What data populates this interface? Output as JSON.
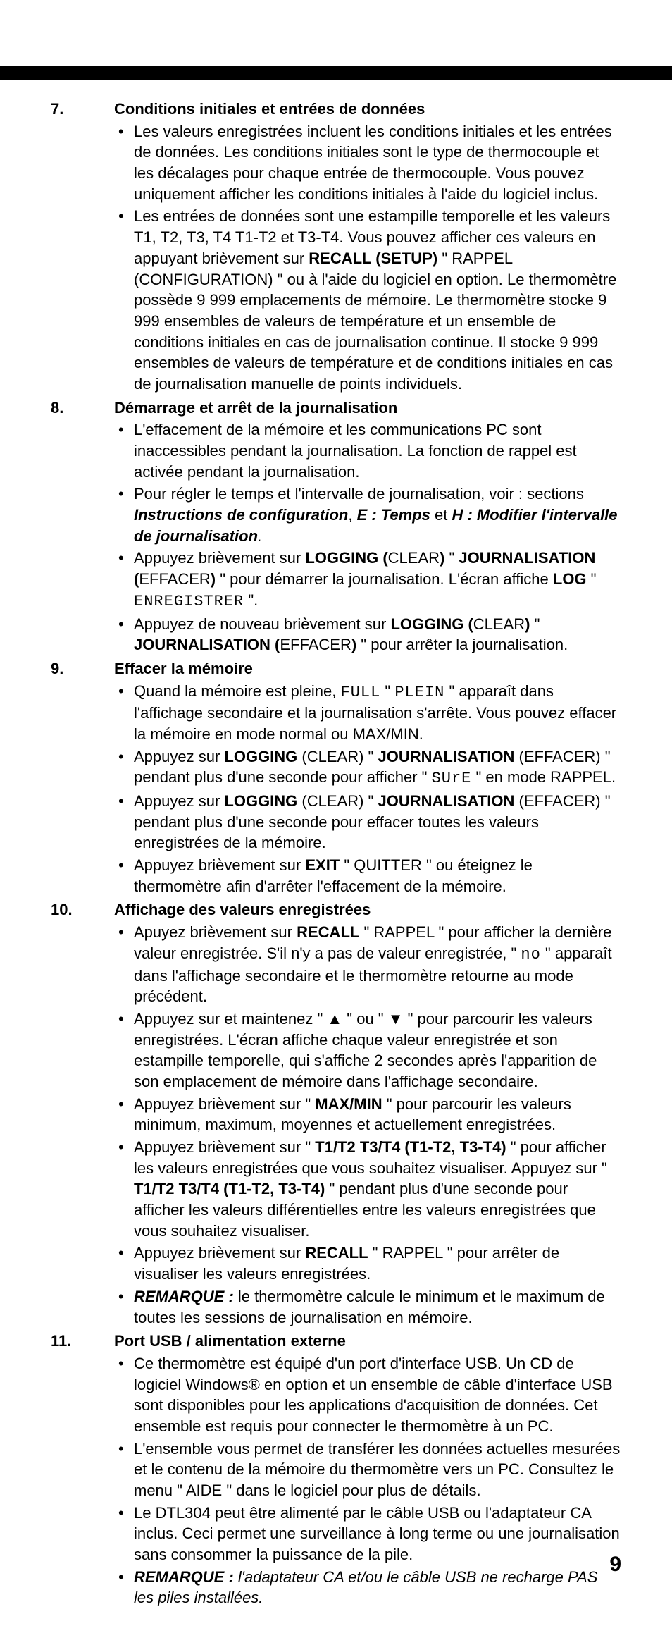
{
  "page_number": "9",
  "sections": [
    {
      "num": "7.",
      "heading": "Conditions initiales et entrées de données",
      "items": [
        {
          "spans": [
            {
              "t": "Les valeurs enregistrées incluent les conditions initiales et les entrées de données. Les conditions initiales sont le type de thermocouple et les décalages pour chaque entrée de thermocouple. Vous pouvez uniquement afficher les conditions initiales à l'aide du logiciel inclus."
            }
          ]
        },
        {
          "spans": [
            {
              "t": "Les entrées de données sont une estampille temporelle et les valeurs T1, T2, T3, T4 T1-T2 et T3-T4. Vous pouvez afficher ces valeurs en appuyant brièvement sur "
            },
            {
              "t": "RECALL (SETUP)",
              "b": true
            },
            {
              "t": " \" RAPPEL (CONFIGURATION) \" ou à l'aide du logiciel en option. Le thermomètre possède 9 999 emplacements de mémoire. Le thermomètre stocke 9 999 ensembles de valeurs de température et un ensemble de conditions initiales en cas de journalisation continue. Il stocke 9 999 ensembles de valeurs de température et de conditions initiales en cas de journalisation manuelle de points individuels."
            }
          ]
        }
      ]
    },
    {
      "num": "8.",
      "heading": "Démarrage et arrêt de la journalisation",
      "items": [
        {
          "spans": [
            {
              "t": "L'effacement de la mémoire et les communications PC sont inaccessibles pendant la journalisation. La fonction de rappel est activée pendant la journalisation."
            }
          ]
        },
        {
          "spans": [
            {
              "t": "Pour régler le temps et l'intervalle de journalisation, voir : sections "
            },
            {
              "t": "Instructions de configuration",
              "b": true,
              "i": true
            },
            {
              "t": ", "
            },
            {
              "t": "E : Temps",
              "b": true,
              "i": true
            },
            {
              "t": " et "
            },
            {
              "t": "H : Modifier l'intervalle de journalisation",
              "b": true,
              "i": true
            },
            {
              "t": ".",
              "i": true
            }
          ]
        },
        {
          "spans": [
            {
              "t": "Appuyez brièvement sur "
            },
            {
              "t": "LOGGING (",
              "b": true
            },
            {
              "t": "CLEAR"
            },
            {
              "t": ")",
              "b": true
            },
            {
              "t": " \" "
            },
            {
              "t": "JOURNALISATION (",
              "b": true
            },
            {
              "t": "EFFACER"
            },
            {
              "t": ")",
              "b": true
            },
            {
              "t": " \" pour démarrer la journalisation. L'écran affiche "
            },
            {
              "t": "LOG",
              "b": true
            },
            {
              "t": " \" "
            },
            {
              "t": "ENREGISTRER",
              "lcd": true
            },
            {
              "t": " \"."
            }
          ]
        },
        {
          "spans": [
            {
              "t": "Appuyez de nouveau brièvement sur "
            },
            {
              "t": "LOGGING (",
              "b": true
            },
            {
              "t": "CLEAR"
            },
            {
              "t": ")",
              "b": true
            },
            {
              "t": " \" "
            },
            {
              "t": "JOURNALISATION (",
              "b": true
            },
            {
              "t": "EFFACER"
            },
            {
              "t": ")",
              "b": true
            },
            {
              "t": " \" pour arrêter la journalisation."
            }
          ]
        }
      ]
    },
    {
      "num": "9.",
      "heading": "Effacer la mémoire",
      "items": [
        {
          "spans": [
            {
              "t": "Quand la mémoire est pleine, "
            },
            {
              "t": "FULL",
              "lcd": true
            },
            {
              "t": " \" "
            },
            {
              "t": "PLEIN",
              "lcd": true
            },
            {
              "t": " \" apparaît dans l'affichage secondaire et la journalisation s'arrête. Vous pouvez effacer la mémoire en mode normal ou MAX/MIN."
            }
          ]
        },
        {
          "spans": [
            {
              "t": "Appuyez sur "
            },
            {
              "t": "LOGGING",
              "b": true
            },
            {
              "t": " (CLEAR) \" "
            },
            {
              "t": "JOURNALISATION",
              "b": true
            },
            {
              "t": " (EFFACER) \" pendant plus d'une seconde pour afficher \" "
            },
            {
              "t": "SUrE",
              "lcd": true
            },
            {
              "t": " \" en mode RAPPEL."
            }
          ]
        },
        {
          "spans": [
            {
              "t": "Appuyez sur "
            },
            {
              "t": "LOGGING",
              "b": true
            },
            {
              "t": " (CLEAR) \" "
            },
            {
              "t": "JOURNALISATION",
              "b": true
            },
            {
              "t": " (EFFACER) \" pendant plus d'une seconde pour effacer toutes les valeurs enregistrées de la mémoire."
            }
          ]
        },
        {
          "spans": [
            {
              "t": "Appuyez brièvement sur "
            },
            {
              "t": "EXIT",
              "b": true
            },
            {
              "t": " \" QUITTER \" ou éteignez le thermomètre afin d'arrêter l'effacement de la mémoire."
            }
          ]
        }
      ]
    },
    {
      "num": "10.",
      "heading": "Affichage des valeurs enregistrées",
      "items": [
        {
          "spans": [
            {
              "t": "Apuyez brièvement sur "
            },
            {
              "t": "RECALL",
              "b": true
            },
            {
              "t": " \" RAPPEL \" pour afficher la dernière valeur enregistrée. S'il n'y a pas de valeur enregistrée, \" "
            },
            {
              "t": "no",
              "lcd": true
            },
            {
              "t": " \" apparaît dans l'affichage secondaire et le thermomètre retourne au mode précédent."
            }
          ]
        },
        {
          "spans": [
            {
              "t": "Appuyez sur et maintenez \" "
            },
            {
              "t": "▲",
              "b": true
            },
            {
              "t": " \" ou \" "
            },
            {
              "t": "▼",
              "b": true
            },
            {
              "t": " \" pour parcourir les valeurs enregistrées. L'écran affiche chaque valeur enregistrée et son estampille temporelle, qui s'affiche 2 secondes après l'apparition de son emplacement de mémoire dans l'affichage secondaire."
            }
          ]
        },
        {
          "spans": [
            {
              "t": "Appuyez brièvement sur \" "
            },
            {
              "t": "MAX/MIN",
              "b": true
            },
            {
              "t": " \" pour parcourir les valeurs minimum, maximum, moyennes et actuellement enregistrées."
            }
          ]
        },
        {
          "spans": [
            {
              "t": "Appuyez brièvement sur \" "
            },
            {
              "t": "T1/T2 T3/T4 (T1-T2, T3-T4)",
              "b": true
            },
            {
              "t": " \" pour afficher les valeurs enregistrées que vous souhaitez visualiser. Appuyez sur \" "
            },
            {
              "t": "T1/T2 T3/T4 (T1-T2, T3-T4)",
              "b": true
            },
            {
              "t": " \" pendant plus d'une seconde pour afficher les valeurs différentielles entre les valeurs enregistrées que vous souhaitez visualiser."
            }
          ]
        },
        {
          "spans": [
            {
              "t": "Appuyez brièvement sur "
            },
            {
              "t": "RECALL",
              "b": true
            },
            {
              "t": " \" RAPPEL \" pour arrêter de visualiser les valeurs enregistrées."
            }
          ]
        },
        {
          "spans": [
            {
              "t": "REMARQUE : ",
              "b": true,
              "i": true
            },
            {
              "t": "le thermomètre calcule le minimum et le maximum de toutes les sessions de journalisation en mémoire."
            }
          ]
        }
      ]
    },
    {
      "num": "11.",
      "heading": "Port USB / alimentation externe",
      "items": [
        {
          "spans": [
            {
              "t": "Ce thermomètre est équipé d'un port d'interface USB. Un CD de logiciel Windows® en option et un ensemble de câble d'interface USB sont disponibles pour les applications d'acquisition de données. Cet ensemble est requis pour connecter le thermomètre à un PC."
            }
          ]
        },
        {
          "spans": [
            {
              "t": "L'ensemble vous permet de transférer les données actuelles mesurées et le contenu de la mémoire du thermomètre vers un PC. Consultez le menu \" AIDE \" dans le logiciel pour plus de détails."
            }
          ]
        },
        {
          "spans": [
            {
              "t": "Le DTL304 peut être alimenté par le câble USB ou l'adaptateur CA inclus. Ceci permet une surveillance à long terme ou une journalisation sans consommer la puissance de la pile."
            }
          ]
        },
        {
          "spans": [
            {
              "t": "REMARQUE : ",
              "b": true,
              "i": true
            },
            {
              "t": "l'adaptateur CA et/ou le câble USB ne recharge PAS les piles installées.",
              "i": true
            }
          ]
        }
      ]
    }
  ]
}
